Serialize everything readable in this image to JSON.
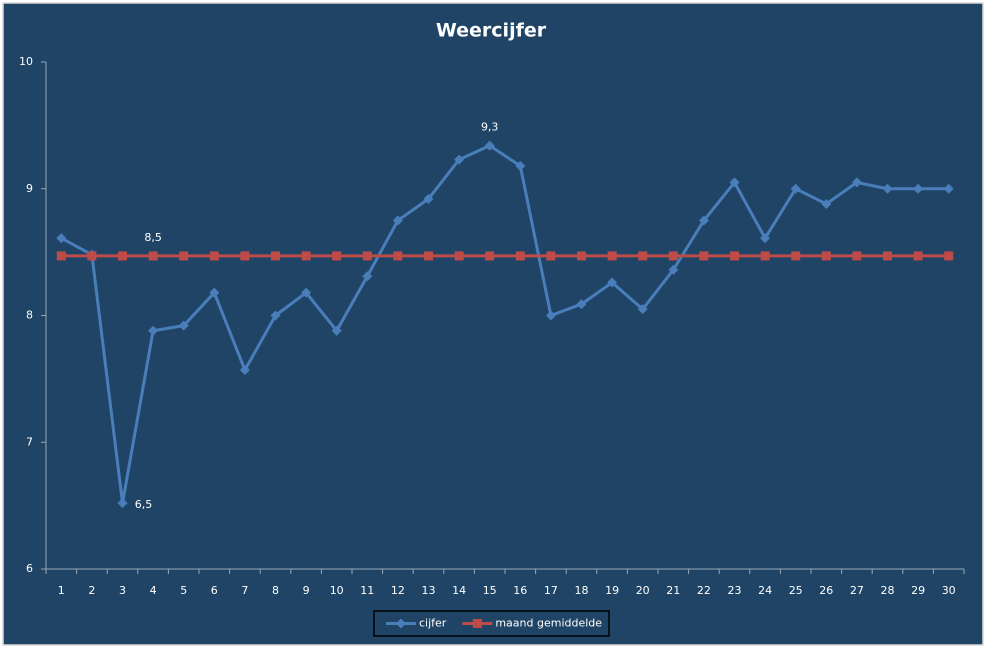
{
  "chart_data": {
    "type": "line",
    "title": "Weercijfer",
    "categories": [
      "1",
      "2",
      "3",
      "4",
      "5",
      "6",
      "7",
      "8",
      "9",
      "10",
      "11",
      "12",
      "13",
      "14",
      "15",
      "16",
      "17",
      "18",
      "19",
      "20",
      "21",
      "22",
      "23",
      "24",
      "25",
      "26",
      "27",
      "28",
      "29",
      "30"
    ],
    "series": [
      {
        "name": "cijfer",
        "color": "#4a7ebb",
        "marker": "diamond",
        "values": [
          8.61,
          8.48,
          6.52,
          7.88,
          7.92,
          8.18,
          7.57,
          8.0,
          8.18,
          7.88,
          8.31,
          8.75,
          8.92,
          9.23,
          9.34,
          9.18,
          8.0,
          8.09,
          8.26,
          8.05,
          8.36,
          8.75,
          9.05,
          8.61,
          9.0,
          8.88,
          9.05,
          9.0,
          9.0,
          9.0
        ],
        "value_labels": [
          null,
          null,
          "6,5",
          null,
          null,
          null,
          null,
          null,
          null,
          null,
          null,
          null,
          null,
          null,
          "9,3",
          null,
          null,
          null,
          null,
          null,
          null,
          null,
          null,
          null,
          null,
          null,
          null,
          null,
          null,
          null
        ]
      },
      {
        "name": "maand gemiddelde",
        "color": "#be4b48",
        "marker": "square",
        "values": [
          8.47,
          8.47,
          8.47,
          8.47,
          8.47,
          8.47,
          8.47,
          8.47,
          8.47,
          8.47,
          8.47,
          8.47,
          8.47,
          8.47,
          8.47,
          8.47,
          8.47,
          8.47,
          8.47,
          8.47,
          8.47,
          8.47,
          8.47,
          8.47,
          8.47,
          8.47,
          8.47,
          8.47,
          8.47,
          8.47
        ],
        "value_labels": [
          null,
          null,
          null,
          "8,5",
          null,
          null,
          null,
          null,
          null,
          null,
          null,
          null,
          null,
          null,
          null,
          null,
          null,
          null,
          null,
          null,
          null,
          null,
          null,
          null,
          null,
          null,
          null,
          null,
          null,
          null
        ]
      }
    ],
    "ylim": [
      6,
      10
    ],
    "yticks": [
      6,
      7,
      8,
      9,
      10
    ],
    "grid": false,
    "legend": "bottom"
  }
}
